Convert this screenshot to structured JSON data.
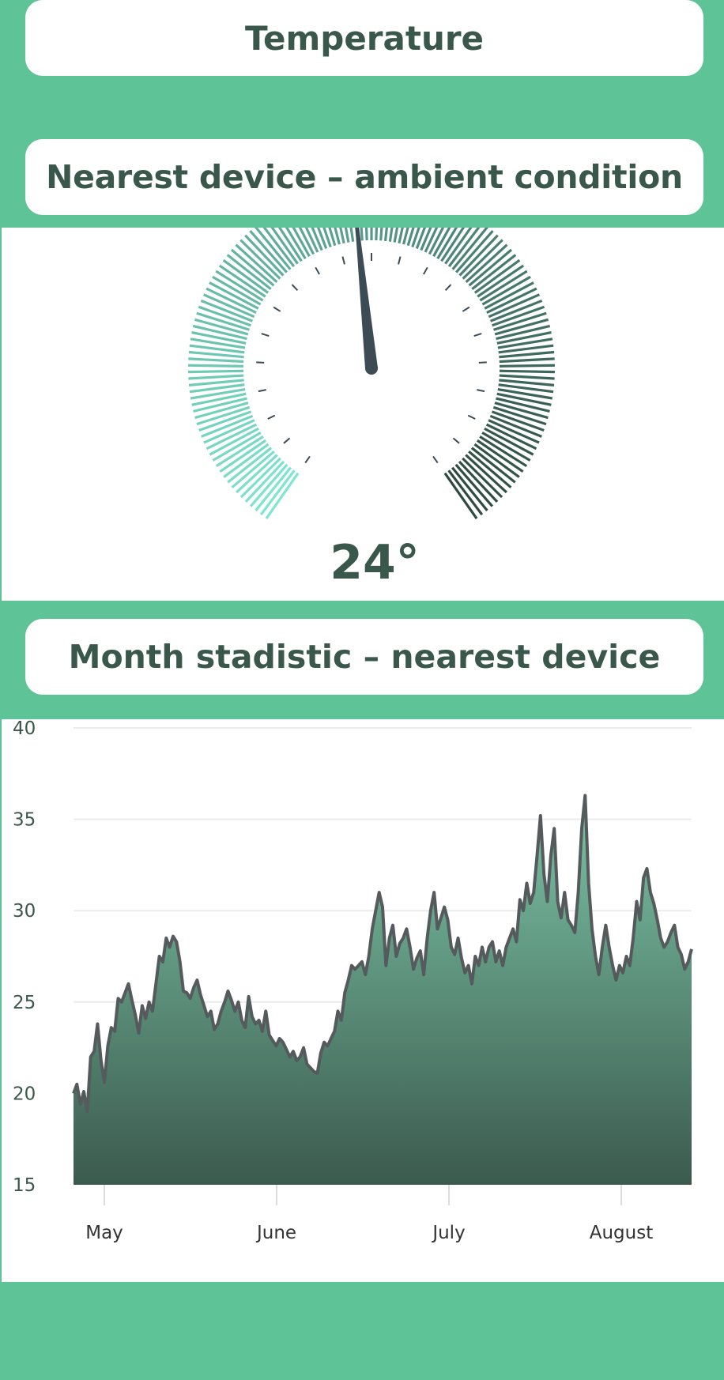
{
  "header": {
    "title": "Temperature"
  },
  "gauge_section": {
    "title": "Nearest device – ambient condition",
    "value": 24,
    "display": "24°",
    "scale_min": 0,
    "scale_max": 50
  },
  "chart_section": {
    "title": "Month stadistic – nearest device"
  },
  "colors": {
    "brand_green": "#5ec397",
    "dark_text": "#3a574b",
    "gauge_start": "#7ee6d2",
    "gauge_end": "#2f4a40",
    "needle": "#3d4b55",
    "line": "#555a5c",
    "area_top": "#7cc4a6",
    "area_bottom": "#3b5a4e"
  },
  "chart_data": {
    "type": "area",
    "title": "",
    "xlabel": "",
    "ylabel": "",
    "ylim": [
      15,
      40
    ],
    "yticks": [
      15,
      20,
      25,
      30,
      35,
      40
    ],
    "xticks": [
      "May",
      "June",
      "July",
      "August"
    ],
    "grid": true,
    "series": [
      {
        "values": [
          20.0,
          20.5,
          19.4,
          20.1,
          19.0,
          22.0,
          22.3,
          23.8,
          21.8,
          20.6,
          22.6,
          23.6,
          23.4,
          25.2,
          25.0,
          25.5,
          26.0,
          25.1,
          24.3,
          23.3,
          24.8,
          24.1,
          25.0,
          24.5,
          26.0,
          27.5,
          27.2,
          28.5,
          28.0,
          28.6,
          28.3,
          27.2,
          25.6,
          25.5,
          25.2,
          25.8,
          26.2,
          25.4,
          24.8,
          24.2,
          24.5,
          23.5,
          23.8,
          24.5,
          25.0,
          25.6,
          25.1,
          24.5,
          25.0,
          24.0,
          23.6,
          25.3,
          24.2,
          23.8,
          24.0,
          23.4,
          24.5,
          23.2,
          22.9,
          22.6,
          23.0,
          22.8,
          22.4,
          22.0,
          22.3,
          21.8,
          22.0,
          22.5,
          21.6,
          21.4,
          21.2,
          21.1,
          22.2,
          22.8,
          22.6,
          23.0,
          23.4,
          24.5,
          24.0,
          25.5,
          26.2,
          27.0,
          26.8,
          27.0,
          27.2,
          26.5,
          27.5,
          29.0,
          30.0,
          31.0,
          30.2,
          27.0,
          28.5,
          29.2,
          27.5,
          28.2,
          28.5,
          29.0,
          28.0,
          26.8,
          27.4,
          27.8,
          26.5,
          28.5,
          30.0,
          31.0,
          29.0,
          29.6,
          30.2,
          29.5,
          28.0,
          27.6,
          28.5,
          27.4,
          26.6,
          27.0,
          26.0,
          27.5,
          27.0,
          28.0,
          27.2,
          28.0,
          28.3,
          27.2,
          27.8,
          27.0,
          28.0,
          28.5,
          29.0,
          28.3,
          30.6,
          30.0,
          31.5,
          30.4,
          31.0,
          33.0,
          35.2,
          32.0,
          30.5,
          33.0,
          34.5,
          30.5,
          29.6,
          31.0,
          29.5,
          29.2,
          28.8,
          31.0,
          34.5,
          36.3,
          31.5,
          29.0,
          27.5,
          26.5,
          28.0,
          29.2,
          28.0,
          27.0,
          26.2,
          27.0,
          26.6,
          27.5,
          27.0,
          28.5,
          30.5,
          29.5,
          31.8,
          32.3,
          31.0,
          30.4,
          29.5,
          28.5,
          28.0,
          28.3,
          28.8,
          29.2,
          28.0,
          27.6,
          26.8,
          27.2,
          27.9
        ]
      }
    ]
  }
}
